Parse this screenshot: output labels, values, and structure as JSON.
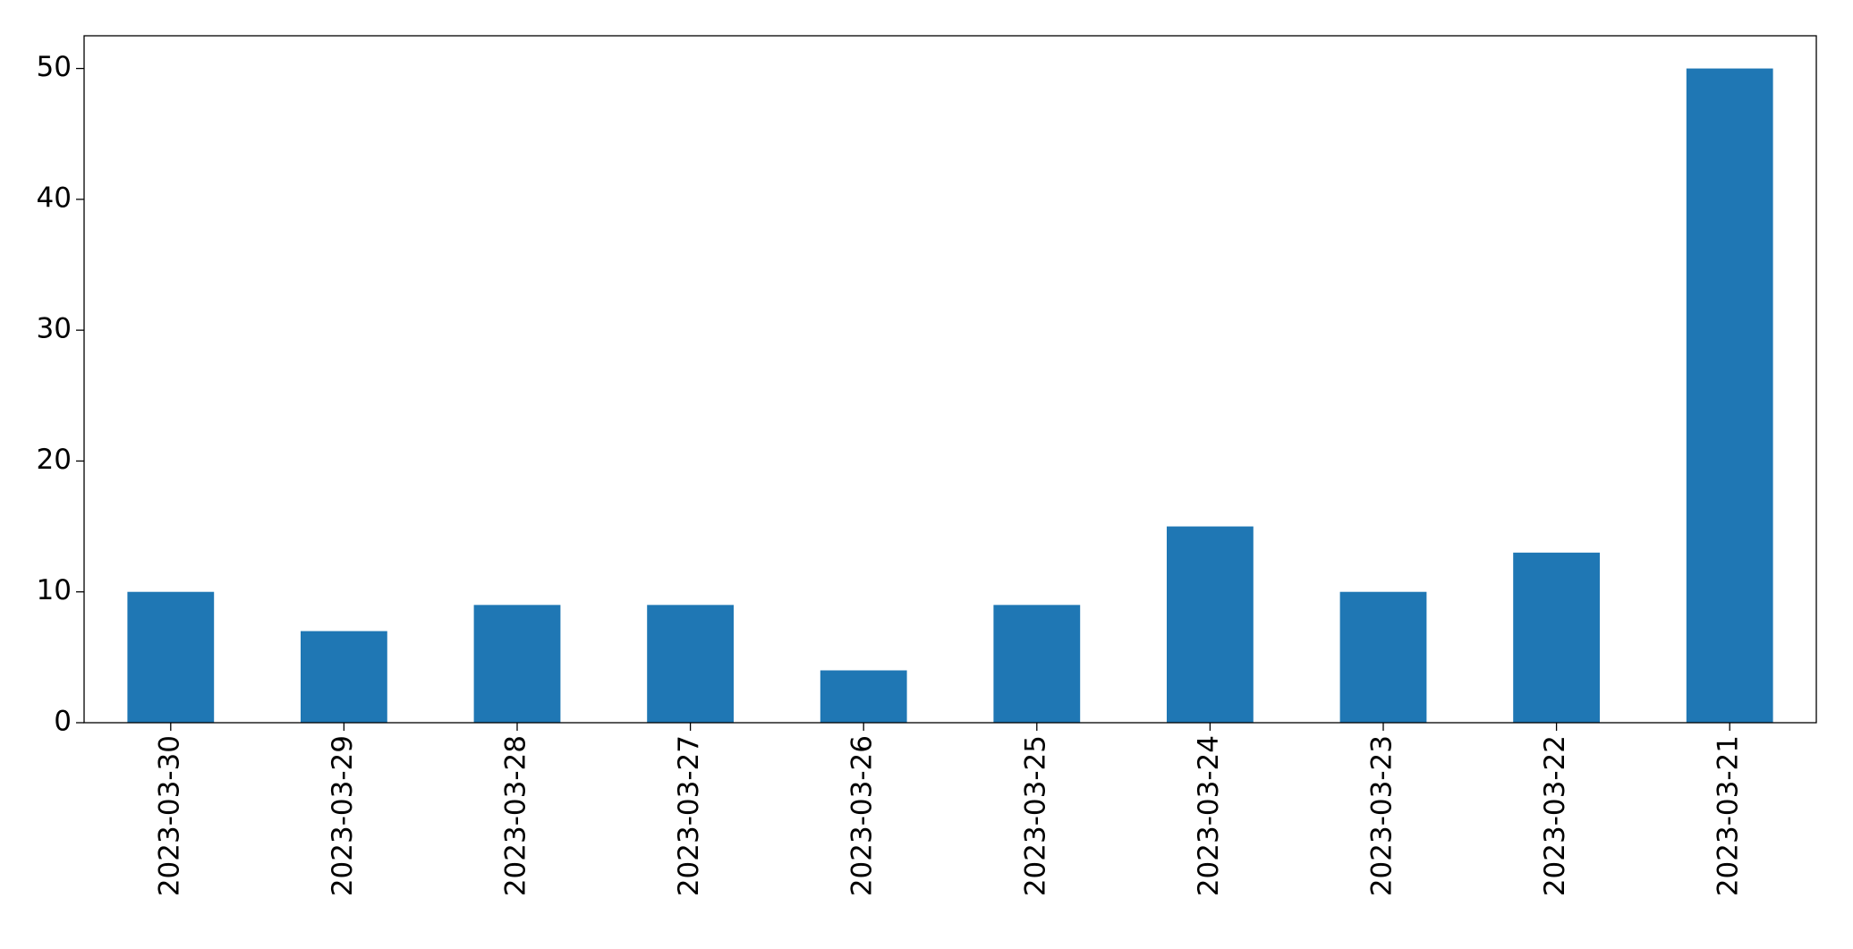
{
  "chart_data": {
    "type": "bar",
    "categories": [
      "2023-03-30",
      "2023-03-29",
      "2023-03-28",
      "2023-03-27",
      "2023-03-26",
      "2023-03-25",
      "2023-03-24",
      "2023-03-23",
      "2023-03-22",
      "2023-03-21"
    ],
    "values": [
      10,
      7,
      9,
      9,
      4,
      9,
      15,
      10,
      13,
      50
    ],
    "color": "#1f77b4",
    "ylim": [
      0,
      52.5
    ],
    "yticks": [
      0,
      10,
      20,
      30,
      40,
      50
    ],
    "grid": false
  }
}
